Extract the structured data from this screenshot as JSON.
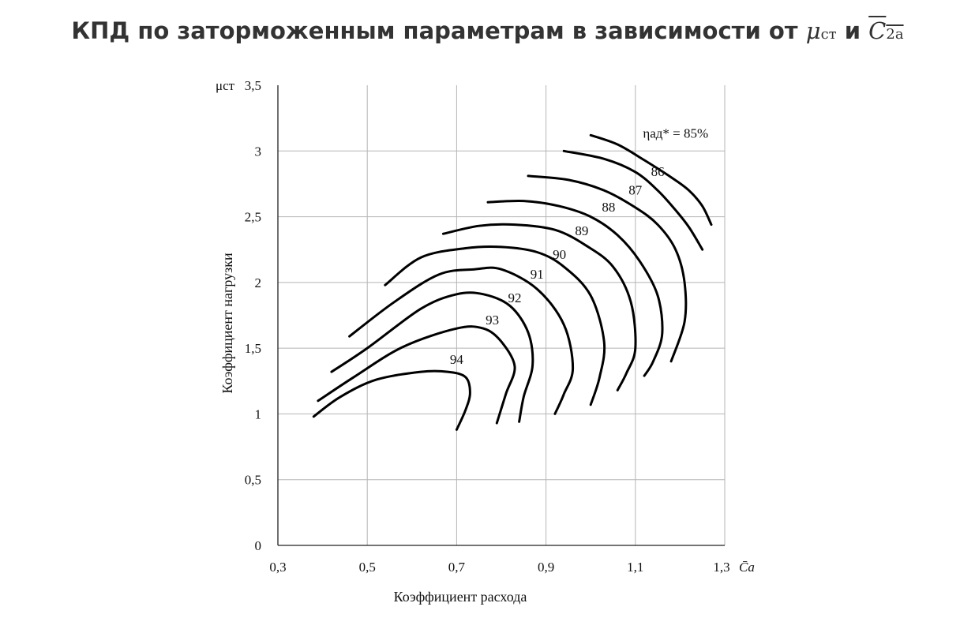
{
  "title": {
    "text": "КПД по заторможенным параметрам в зависимости от",
    "mu": "μ",
    "mu_sub": "ст",
    "conj": "и",
    "c": "C",
    "c_sub": "2a"
  },
  "chart_data": {
    "type": "line",
    "title": "КПД по заторможенным параметрам в зависимости от μст и C2a",
    "xlabel": "Коэффициент расхода",
    "ylabel": "Коэффициент нагрузки",
    "x_axis_symbol": "C̄a",
    "y_axis_symbol": "μст",
    "xlim": [
      0.3,
      1.3
    ],
    "ylim": [
      0,
      3.5
    ],
    "x_ticks": [
      "0,3",
      "0,5",
      "0,7",
      "0,9",
      "1,1",
      "1,3"
    ],
    "y_ticks": [
      "0",
      "0,5",
      "1",
      "1,5",
      "2",
      "2,5",
      "3",
      "3,5"
    ],
    "grid": true,
    "series": [
      {
        "name": "94",
        "label": "94",
        "points": [
          [
            0.38,
            0.98
          ],
          [
            0.44,
            1.13
          ],
          [
            0.52,
            1.26
          ],
          [
            0.62,
            1.32
          ],
          [
            0.68,
            1.32
          ],
          [
            0.72,
            1.28
          ],
          [
            0.73,
            1.16
          ],
          [
            0.72,
            1.03
          ],
          [
            0.7,
            0.88
          ]
        ]
      },
      {
        "name": "93",
        "label": "93",
        "points": [
          [
            0.39,
            1.1
          ],
          [
            0.47,
            1.28
          ],
          [
            0.58,
            1.51
          ],
          [
            0.7,
            1.65
          ],
          [
            0.76,
            1.65
          ],
          [
            0.8,
            1.55
          ],
          [
            0.83,
            1.36
          ],
          [
            0.81,
            1.15
          ],
          [
            0.79,
            0.93
          ]
        ]
      },
      {
        "name": "92",
        "label": "92",
        "points": [
          [
            0.42,
            1.32
          ],
          [
            0.5,
            1.5
          ],
          [
            0.62,
            1.8
          ],
          [
            0.7,
            1.91
          ],
          [
            0.76,
            1.91
          ],
          [
            0.82,
            1.82
          ],
          [
            0.86,
            1.62
          ],
          [
            0.87,
            1.37
          ],
          [
            0.85,
            1.13
          ],
          [
            0.84,
            0.94
          ]
        ]
      },
      {
        "name": "91",
        "label": "91",
        "points": [
          [
            0.46,
            1.59
          ],
          [
            0.56,
            1.85
          ],
          [
            0.66,
            2.06
          ],
          [
            0.74,
            2.1
          ],
          [
            0.8,
            2.1
          ],
          [
            0.88,
            1.95
          ],
          [
            0.94,
            1.68
          ],
          [
            0.96,
            1.35
          ],
          [
            0.94,
            1.15
          ],
          [
            0.92,
            1.0
          ]
        ]
      },
      {
        "name": "90",
        "label": "90",
        "points": [
          [
            0.54,
            1.98
          ],
          [
            0.62,
            2.19
          ],
          [
            0.72,
            2.26
          ],
          [
            0.8,
            2.27
          ],
          [
            0.88,
            2.23
          ],
          [
            0.94,
            2.12
          ],
          [
            1.0,
            1.9
          ],
          [
            1.03,
            1.55
          ],
          [
            1.02,
            1.28
          ],
          [
            1.0,
            1.07
          ]
        ]
      },
      {
        "name": "89",
        "label": "89",
        "points": [
          [
            0.67,
            2.37
          ],
          [
            0.75,
            2.43
          ],
          [
            0.83,
            2.44
          ],
          [
            0.92,
            2.4
          ],
          [
            0.99,
            2.28
          ],
          [
            1.05,
            2.12
          ],
          [
            1.09,
            1.85
          ],
          [
            1.1,
            1.5
          ],
          [
            1.08,
            1.31
          ],
          [
            1.06,
            1.18
          ]
        ]
      },
      {
        "name": "88",
        "label": "88",
        "points": [
          [
            0.77,
            2.61
          ],
          [
            0.85,
            2.62
          ],
          [
            0.93,
            2.58
          ],
          [
            1.0,
            2.5
          ],
          [
            1.06,
            2.36
          ],
          [
            1.11,
            2.16
          ],
          [
            1.15,
            1.9
          ],
          [
            1.16,
            1.61
          ],
          [
            1.14,
            1.4
          ],
          [
            1.12,
            1.29
          ]
        ]
      },
      {
        "name": "87",
        "label": "87",
        "points": [
          [
            0.86,
            2.81
          ],
          [
            0.95,
            2.78
          ],
          [
            1.03,
            2.7
          ],
          [
            1.1,
            2.57
          ],
          [
            1.15,
            2.44
          ],
          [
            1.19,
            2.25
          ],
          [
            1.21,
            2.0
          ],
          [
            1.21,
            1.7
          ],
          [
            1.18,
            1.4
          ]
        ]
      },
      {
        "name": "86",
        "label": "86",
        "points": [
          [
            0.94,
            3.0
          ],
          [
            1.03,
            2.94
          ],
          [
            1.1,
            2.84
          ],
          [
            1.15,
            2.7
          ],
          [
            1.19,
            2.55
          ],
          [
            1.22,
            2.42
          ],
          [
            1.25,
            2.25
          ]
        ]
      },
      {
        "name": "85",
        "label": "ηад* = 85%",
        "points": [
          [
            1.0,
            3.12
          ],
          [
            1.06,
            3.05
          ],
          [
            1.12,
            2.93
          ],
          [
            1.18,
            2.8
          ],
          [
            1.22,
            2.7
          ],
          [
            1.25,
            2.58
          ],
          [
            1.27,
            2.44
          ]
        ]
      }
    ],
    "labels": [
      {
        "text": "94",
        "x": 0.7,
        "y": 1.38
      },
      {
        "text": "93",
        "x": 0.78,
        "y": 1.68
      },
      {
        "text": "92",
        "x": 0.83,
        "y": 1.85
      },
      {
        "text": "91",
        "x": 0.88,
        "y": 2.03
      },
      {
        "text": "90",
        "x": 0.93,
        "y": 2.18
      },
      {
        "text": "89",
        "x": 0.98,
        "y": 2.36
      },
      {
        "text": "88",
        "x": 1.04,
        "y": 2.54
      },
      {
        "text": "87",
        "x": 1.1,
        "y": 2.67
      },
      {
        "text": "86",
        "x": 1.15,
        "y": 2.81
      },
      {
        "text": "ηад* = 85%",
        "x": 1.19,
        "y": 3.1
      }
    ]
  }
}
